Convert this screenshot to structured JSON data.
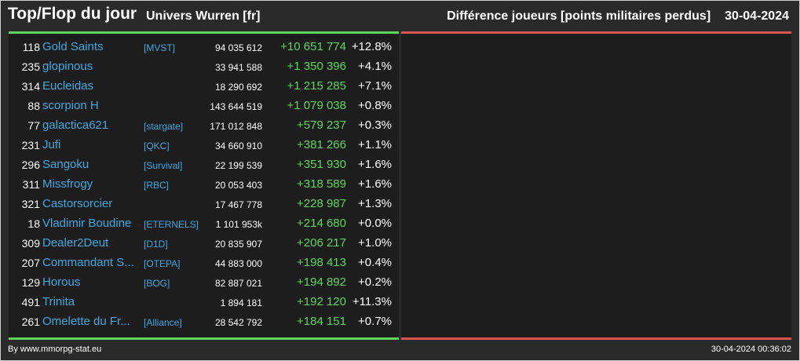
{
  "header": {
    "title": "Top/Flop du jour",
    "universe": "Univers Wurren [fr]",
    "metric": "Différence joueurs [points militaires perdus]",
    "date": "30-04-2024"
  },
  "colors": {
    "background": "#2a2a2a",
    "panel": "#1d1d1d",
    "link": "#3fa9e0",
    "positive": "#5ed65e",
    "flop_bar": "#d9534f"
  },
  "top": [
    {
      "rank": "118",
      "name": "Gold Saints",
      "ally": "[MVST]",
      "points": "94 035 612",
      "diff": "+10 651 774",
      "pct": "+12.8%"
    },
    {
      "rank": "235",
      "name": "glopinous",
      "ally": "",
      "points": "33 941 588",
      "diff": "+1 350 396",
      "pct": "+4.1%"
    },
    {
      "rank": "314",
      "name": "Eucleidas",
      "ally": "",
      "points": "18 290 692",
      "diff": "+1 215 285",
      "pct": "+7.1%"
    },
    {
      "rank": "88",
      "name": "scorpion H",
      "ally": "",
      "points": "143 644 519",
      "diff": "+1 079 038",
      "pct": "+0.8%"
    },
    {
      "rank": "77",
      "name": "galactica621",
      "ally": "[stargate]",
      "points": "171 012 848",
      "diff": "+579 237",
      "pct": "+0.3%"
    },
    {
      "rank": "231",
      "name": "Jufi",
      "ally": "[QKC]",
      "points": "34 660 910",
      "diff": "+381 266",
      "pct": "+1.1%"
    },
    {
      "rank": "296",
      "name": "Sangoku",
      "ally": "[Survival]",
      "points": "22 199 539",
      "diff": "+351 930",
      "pct": "+1.6%"
    },
    {
      "rank": "311",
      "name": "Missfrogy",
      "ally": "[RBC]",
      "points": "20 053 403",
      "diff": "+318 589",
      "pct": "+1.6%"
    },
    {
      "rank": "321",
      "name": "Castorsorcier",
      "ally": "",
      "points": "17 467 778",
      "diff": "+228 987",
      "pct": "+1.3%"
    },
    {
      "rank": "18",
      "name": "Vladimir Boudine",
      "ally": "[ETERNELS]",
      "points": "1 101 953k",
      "diff": "+214 680",
      "pct": "+0.0%"
    },
    {
      "rank": "309",
      "name": "Dealer2Deut",
      "ally": "[D1D]",
      "points": "20 835 907",
      "diff": "+206 217",
      "pct": "+1.0%"
    },
    {
      "rank": "207",
      "name": "Commandant S...",
      "ally": "[OTEPA]",
      "points": "44 883 000",
      "diff": "+198 413",
      "pct": "+0.4%"
    },
    {
      "rank": "129",
      "name": "Horous",
      "ally": "[BOG]",
      "points": "82 887 021",
      "diff": "+194 892",
      "pct": "+0.2%"
    },
    {
      "rank": "491",
      "name": "Trinita",
      "ally": "",
      "points": "1 894 181",
      "diff": "+192 120",
      "pct": "+11.3%"
    },
    {
      "rank": "261",
      "name": "Omelette du Fr...",
      "ally": "[Alliance]",
      "points": "28 542 792",
      "diff": "+184 151",
      "pct": "+0.7%"
    }
  ],
  "footer": {
    "source": "By www.mmorpg-stat.eu",
    "timestamp": "30-04-2024 00:36:02"
  }
}
